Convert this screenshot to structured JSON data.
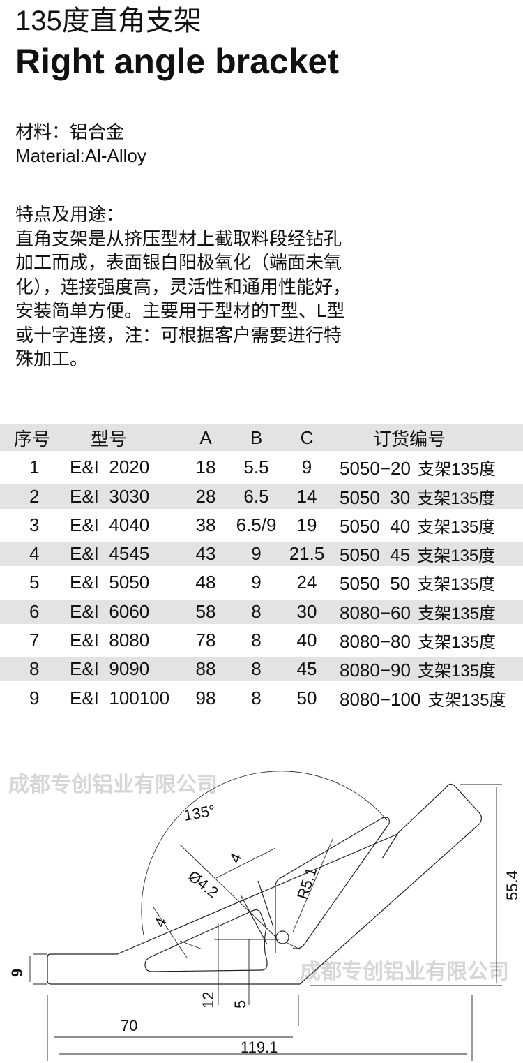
{
  "title_cn": "135度直角支架",
  "title_en": "Right angle bracket",
  "material_cn": "材料：铝合金",
  "material_en": "Material:Al-Alloy",
  "features_heading": "特点及用途：",
  "features_lines": [
    "直角支架是从挤压型材上截取料段经钻孔",
    "加工而成，表面银白阳极氧化（端面未氧",
    "化），连接强度高，灵活性和通用性能好，",
    "安装简单方便。主要用于型材的T型、L型",
    "或十字连接，注：可根据客户需要进行特",
    "殊加工。"
  ],
  "table": {
    "headers": [
      "序号",
      "型号",
      "A",
      "B",
      "C",
      "订货编号"
    ],
    "rows": [
      {
        "no": "1",
        "model": "E&I  2020",
        "a": "18",
        "b": "5.5",
        "c": "9",
        "order": "5050−20",
        "suffix": "支架135度"
      },
      {
        "no": "2",
        "model": "E&I  3030",
        "a": "28",
        "b": "6.5",
        "c": "14",
        "order": "5050  30",
        "suffix": "支架135度"
      },
      {
        "no": "3",
        "model": "E&I  4040",
        "a": "38",
        "b": "6.5/9",
        "c": "19",
        "order": "5050  40",
        "suffix": "支架135度"
      },
      {
        "no": "4",
        "model": "E&I  4545",
        "a": "43",
        "b": "9",
        "c": "21.5",
        "order": "5050  45",
        "suffix": "支架135度"
      },
      {
        "no": "5",
        "model": "E&I  5050",
        "a": "48",
        "b": "9",
        "c": "24",
        "order": "5050  50",
        "suffix": "支架135度"
      },
      {
        "no": "6",
        "model": "E&I  6060",
        "a": "58",
        "b": "8",
        "c": "30",
        "order": "8080−60",
        "suffix": "支架135度"
      },
      {
        "no": "7",
        "model": "E&I  8080",
        "a": "78",
        "b": "8",
        "c": "40",
        "order": "8080−80",
        "suffix": "支架135度"
      },
      {
        "no": "8",
        "model": "E&I  9090",
        "a": "88",
        "b": "8",
        "c": "45",
        "order": "8080−90",
        "suffix": "支架135度"
      },
      {
        "no": "9",
        "model": "E&I  100100",
        "a": "98",
        "b": "8",
        "c": "50",
        "order": "8080−100",
        "suffix": "支架135度"
      }
    ]
  },
  "drawing": {
    "angle": "135°",
    "radius": "R5.1",
    "hole": "Ø4.2",
    "slot_w1": "4",
    "slot_w2": "4",
    "thickness": "9",
    "dim12": "12",
    "dim5": "5",
    "dim70": "70",
    "dim119": "119.1",
    "height": "55.4",
    "watermark": "成都专创铝业有限公司"
  }
}
